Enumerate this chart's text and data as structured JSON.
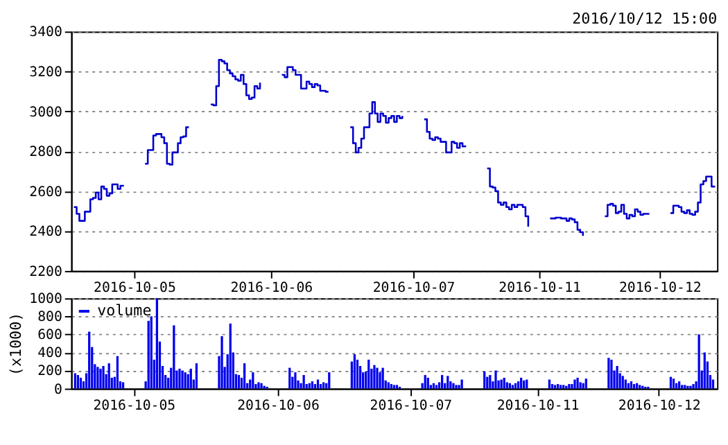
{
  "chart_data": [
    {
      "type": "step",
      "annotations": [
        "2016/10/12 15:00"
      ],
      "ylim": [
        2200,
        3400
      ],
      "yticks": [
        2200,
        2400,
        2600,
        2800,
        3000,
        3200,
        3400
      ],
      "grid": "y",
      "line_style": "solid",
      "marker": "none",
      "categories": [
        null,
        null,
        null,
        null,
        null,
        null,
        null,
        null,
        null,
        null,
        null,
        null,
        null,
        null,
        null,
        null,
        null,
        null,
        null,
        null,
        null,
        null,
        "2016-10-05",
        null,
        null,
        null,
        null,
        null,
        null,
        null,
        null,
        null,
        null,
        null,
        null,
        null,
        null,
        null,
        null,
        null,
        null,
        null,
        null,
        null,
        null,
        null,
        null,
        null,
        null,
        null,
        null,
        null,
        null,
        null,
        null,
        null,
        null,
        null,
        null,
        null,
        null,
        null,
        null,
        null,
        null,
        null,
        null,
        null,
        null,
        null,
        null,
        null,
        "2016-10-06",
        null,
        null,
        null,
        null,
        null,
        null,
        null,
        null,
        null,
        null,
        null,
        null,
        null,
        null,
        null,
        null,
        null,
        null,
        null,
        null,
        null,
        null,
        null,
        null,
        null,
        null,
        null,
        null,
        null,
        null,
        null,
        null,
        null,
        null,
        null,
        null,
        null,
        null,
        null,
        null,
        null,
        null,
        null,
        null,
        null,
        null,
        null,
        null,
        null,
        null,
        null,
        "2016-10-07",
        null,
        null,
        null,
        null,
        null,
        null,
        null,
        null,
        null,
        null,
        null,
        null,
        null,
        null,
        null,
        null,
        null,
        null,
        null,
        null,
        null,
        null,
        null,
        null,
        null,
        null,
        null,
        null,
        null,
        null,
        null,
        null,
        null,
        null,
        null,
        null,
        null,
        null,
        null,
        null,
        null,
        null,
        null,
        null,
        null,
        "2016-10-11",
        null,
        null,
        null,
        null,
        null,
        null,
        null,
        null,
        null,
        null,
        null,
        null,
        null,
        null,
        null,
        null,
        null,
        null,
        null,
        null,
        null,
        null,
        null,
        null,
        null,
        null,
        null,
        null,
        null,
        null,
        null,
        null,
        null,
        null,
        null,
        null,
        null,
        null,
        null,
        null,
        null,
        null,
        null,
        "2016-10-12",
        null,
        null,
        null,
        null,
        null,
        null,
        null,
        null,
        null,
        null,
        null,
        null,
        null,
        null,
        null,
        null,
        null,
        null,
        null,
        null
      ],
      "series": [
        {
          "color": "#0000cc",
          "values": [
            2520,
            2486,
            2451,
            2451,
            2497,
            2497,
            2559,
            2566,
            2593,
            2559,
            2623,
            2611,
            2577,
            2589,
            2634,
            2634,
            2611,
            2627,
            2623,
            null,
            null,
            null,
            null,
            null,
            null,
            null,
            2737,
            2806,
            2806,
            2879,
            2886,
            2886,
            2870,
            2840,
            2737,
            2733,
            2794,
            2794,
            2840,
            2870,
            2874,
            2920,
            2920,
            null,
            null,
            null,
            null,
            null,
            null,
            null,
            3034,
            3030,
            3126,
            3258,
            3251,
            3240,
            3206,
            3190,
            3176,
            3160,
            3153,
            3183,
            3137,
            3080,
            3062,
            3069,
            3126,
            3114,
            3144,
            null,
            null,
            null,
            null,
            null,
            null,
            null,
            3183,
            3171,
            3222,
            3222,
            3206,
            3183,
            3183,
            3114,
            3114,
            3149,
            3137,
            3121,
            3137,
            3130,
            3103,
            3103,
            3098,
            3098,
            null,
            null,
            null,
            null,
            null,
            null,
            null,
            2920,
            2840,
            2794,
            2817,
            2863,
            2920,
            2920,
            2989,
            3046,
            2989,
            2947,
            2989,
            2977,
            2943,
            2966,
            2977,
            2947,
            2977,
            2966,
            2977,
            null,
            null,
            null,
            null,
            null,
            null,
            null,
            2960,
            2897,
            2863,
            2856,
            2870,
            2863,
            2847,
            2847,
            2794,
            2794,
            2847,
            2840,
            2817,
            2840,
            2824,
            2829,
            null,
            null,
            null,
            null,
            null,
            null,
            null,
            2714,
            2623,
            2618,
            2600,
            2543,
            2531,
            2543,
            2520,
            2509,
            2531,
            2520,
            2531,
            2531,
            2520,
            2474,
            2422,
            null,
            null,
            null,
            null,
            null,
            null,
            null,
            2463,
            2463,
            2467,
            2467,
            2463,
            2463,
            2451,
            2463,
            2458,
            2444,
            2406,
            2394,
            2376,
            null,
            null,
            null,
            null,
            null,
            null,
            null,
            2474,
            2531,
            2536,
            2527,
            2490,
            2497,
            2531,
            2486,
            2463,
            2481,
            2474,
            2509,
            2497,
            2481,
            2486,
            2486,
            2490,
            null,
            null,
            null,
            null,
            null,
            null,
            null,
            2490,
            2527,
            2527,
            2520,
            2497,
            2490,
            2504,
            2486,
            2481,
            2497,
            2543,
            2634,
            2650,
            2673,
            2673,
            2623,
            2618
          ]
        }
      ]
    },
    {
      "type": "bar",
      "ylabel": "(x1000)",
      "legend": "top left",
      "ylim": [
        0,
        1000
      ],
      "yticks": [
        0,
        200,
        400,
        600,
        800,
        1000
      ],
      "grid": "y",
      "categories": [
        null,
        null,
        null,
        null,
        null,
        null,
        null,
        null,
        null,
        null,
        null,
        null,
        null,
        null,
        null,
        null,
        null,
        null,
        null,
        null,
        null,
        "2016-10-05",
        null,
        null,
        null,
        null,
        null,
        null,
        null,
        null,
        null,
        null,
        null,
        null,
        null,
        null,
        null,
        null,
        null,
        null,
        null,
        null,
        null,
        null,
        null,
        null,
        null,
        null,
        null,
        null,
        null,
        null,
        null,
        null,
        null,
        null,
        null,
        null,
        null,
        null,
        null,
        null,
        null,
        null,
        null,
        null,
        null,
        null,
        null,
        null,
        null,
        null,
        "2016-10-06",
        null,
        null,
        null,
        null,
        null,
        null,
        null,
        null,
        null,
        null,
        null,
        null,
        null,
        null,
        null,
        null,
        null,
        null,
        null,
        null,
        null,
        null,
        null,
        null,
        null,
        null,
        null,
        null,
        null,
        null,
        null,
        null,
        null,
        null,
        null,
        null,
        null,
        null,
        null,
        null,
        null,
        null,
        null,
        null,
        null,
        null,
        "2016-10-07",
        null,
        null,
        null,
        null,
        null,
        null,
        null,
        null,
        null,
        null,
        null,
        null,
        null,
        null,
        null,
        null,
        null,
        null,
        null,
        null,
        null,
        null,
        null,
        null,
        null,
        null,
        null,
        null,
        null,
        null,
        null,
        null,
        null,
        null,
        null,
        null,
        null,
        null,
        null,
        null,
        null,
        null,
        null,
        null,
        "2016-10-11",
        null,
        null,
        null,
        null,
        null,
        null,
        null,
        null,
        null,
        null,
        null,
        null,
        null,
        null,
        null,
        null,
        null,
        null,
        null,
        null,
        null,
        null,
        null,
        null,
        null,
        null,
        null,
        null,
        null,
        null,
        null,
        null,
        null,
        null,
        null,
        null,
        null,
        null,
        null,
        null,
        null,
        null,
        "2016-10-12",
        null,
        null,
        null,
        null,
        null,
        null,
        null,
        null,
        null,
        null,
        null,
        null,
        null,
        null,
        null,
        null,
        null,
        null,
        null
      ],
      "series": [
        {
          "name": "volume",
          "color": "#0000ee",
          "values": [
            170,
            150,
            120,
            80,
            170,
            630,
            460,
            270,
            240,
            220,
            250,
            160,
            280,
            120,
            130,
            360,
            80,
            70,
            null,
            null,
            null,
            null,
            null,
            null,
            null,
            80,
            750,
            800,
            320,
            1000,
            520,
            250,
            150,
            120,
            230,
            700,
            200,
            220,
            200,
            180,
            160,
            220,
            100,
            280,
            null,
            null,
            null,
            null,
            null,
            null,
            null,
            360,
            580,
            240,
            380,
            720,
            400,
            160,
            150,
            120,
            280,
            60,
            100,
            180,
            50,
            70,
            60,
            30,
            20,
            null,
            null,
            null,
            null,
            null,
            null,
            null,
            230,
            130,
            180,
            90,
            60,
            150,
            50,
            60,
            80,
            50,
            100,
            50,
            70,
            60,
            180,
            null,
            null,
            null,
            null,
            null,
            null,
            null,
            300,
            380,
            320,
            250,
            180,
            190,
            320,
            220,
            260,
            230,
            180,
            230,
            90,
            70,
            50,
            40,
            40,
            20,
            null,
            null,
            null,
            null,
            null,
            null,
            null,
            60,
            150,
            120,
            40,
            60,
            40,
            70,
            150,
            60,
            140,
            80,
            60,
            40,
            40,
            100,
            null,
            null,
            null,
            null,
            null,
            null,
            null,
            190,
            130,
            150,
            80,
            200,
            90,
            100,
            120,
            70,
            60,
            40,
            60,
            80,
            120,
            90,
            100,
            null,
            null,
            null,
            null,
            null,
            null,
            null,
            100,
            50,
            40,
            50,
            40,
            40,
            30,
            50,
            50,
            100,
            120,
            70,
            60,
            110,
            null,
            null,
            null,
            null,
            null,
            null,
            null,
            340,
            320,
            200,
            250,
            170,
            140,
            100,
            60,
            80,
            50,
            60,
            40,
            30,
            20,
            20,
            null,
            null,
            null,
            null,
            null,
            null,
            null,
            130,
            110,
            60,
            80,
            40,
            40,
            30,
            30,
            50,
            80,
            600,
            200,
            400,
            300,
            150,
            100
          ]
        }
      ]
    }
  ]
}
